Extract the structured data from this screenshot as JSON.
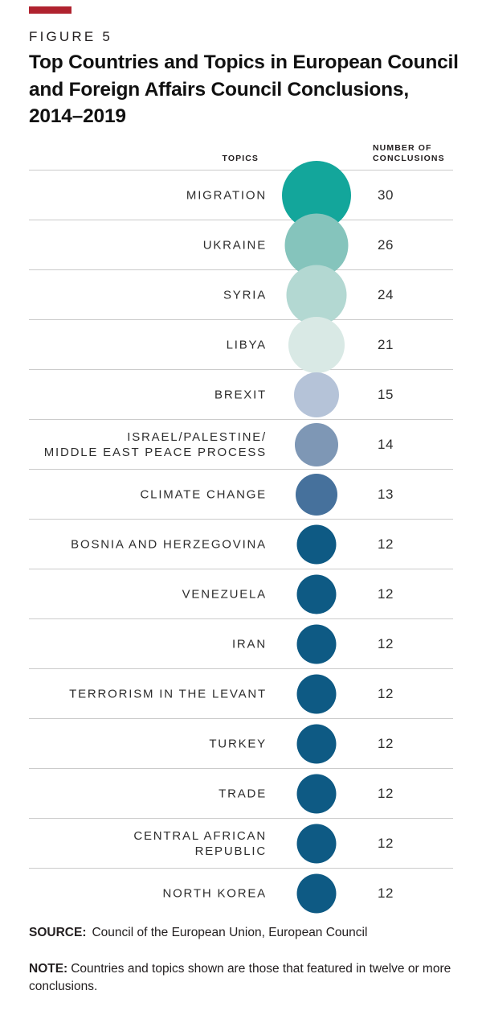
{
  "figure_label": "FIGURE 5",
  "title_display": "Top Countries and Topics in European Council\nand Foreign Affairs Council Conclusions,\n2014–2019",
  "accent_bar_color": "#b0232f",
  "row_line_color": "#cbcbcb",
  "columns": {
    "topics": "TOPICS",
    "number": "NUMBER OF\nCONCLUSIONS"
  },
  "chart_data": {
    "type": "bubble",
    "title": "Top Countries and Topics in European Council and Foreign Affairs Council Conclusions, 2014–2019",
    "category_header": "TOPICS",
    "value_header": "NUMBER OF CONCLUSIONS",
    "legend_position": "none",
    "rows": [
      {
        "label": "MIGRATION",
        "value": 30,
        "color": "#13a69b"
      },
      {
        "label": "UKRAINE",
        "value": 26,
        "color": "#85c4bc"
      },
      {
        "label": "SYRIA",
        "value": 24,
        "color": "#b3d8d2"
      },
      {
        "label": "LIBYA",
        "value": 21,
        "color": "#d9e9e5"
      },
      {
        "label": "BREXIT",
        "value": 15,
        "color": "#b5c3d8"
      },
      {
        "label": "ISRAEL/PALESTINE/\nMIDDLE EAST PEACE PROCESS",
        "value": 14,
        "color": "#7e97b5"
      },
      {
        "label": "CLIMATE CHANGE",
        "value": 13,
        "color": "#46719c"
      },
      {
        "label": "BOSNIA AND HERZEGOVINA",
        "value": 12,
        "color": "#0e5a84"
      },
      {
        "label": "VENEZUELA",
        "value": 12,
        "color": "#0e5a84"
      },
      {
        "label": "IRAN",
        "value": 12,
        "color": "#0e5a84"
      },
      {
        "label": "TERRORISM IN THE LEVANT",
        "value": 12,
        "color": "#0e5a84"
      },
      {
        "label": "TURKEY",
        "value": 12,
        "color": "#0e5a84"
      },
      {
        "label": "TRADE",
        "value": 12,
        "color": "#0e5a84"
      },
      {
        "label": "CENTRAL AFRICAN\nREPUBLIC",
        "value": 12,
        "color": "#0e5a84"
      },
      {
        "label": "NORTH KOREA",
        "value": 12,
        "color": "#0e5a84"
      }
    ]
  },
  "source": {
    "label": "SOURCE:",
    "text": "Council of the European Union, European Council"
  },
  "note": {
    "label": "NOTE:",
    "text": "Countries and topics shown are those that featured in twelve or more conclusions."
  }
}
